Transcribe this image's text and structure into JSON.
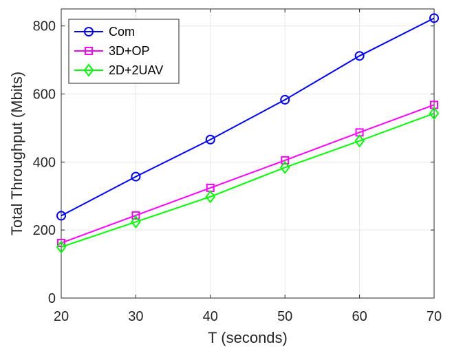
{
  "chart_data": {
    "type": "line",
    "title": "",
    "xlabel": "T (seconds)",
    "ylabel": "Total Throughput (Mbits)",
    "x": [
      20,
      30,
      40,
      50,
      60,
      70
    ],
    "xlim": [
      20,
      70
    ],
    "ylim": [
      0,
      850
    ],
    "xticks": [
      20,
      30,
      40,
      50,
      60,
      70
    ],
    "yticks": [
      0,
      200,
      400,
      600,
      800
    ],
    "grid": true,
    "legend_position": "top-left",
    "series": [
      {
        "name": "Com",
        "color": "#0000ff",
        "marker": "circle",
        "values": [
          242,
          357,
          466,
          583,
          712,
          823
        ]
      },
      {
        "name": "3D+OP",
        "color": "#ff00ff",
        "marker": "square",
        "values": [
          162,
          243,
          324,
          405,
          487,
          568
        ]
      },
      {
        "name": "2D+2UAV",
        "color": "#00ff00",
        "marker": "diamond",
        "values": [
          150,
          224,
          298,
          384,
          462,
          543
        ]
      }
    ]
  }
}
